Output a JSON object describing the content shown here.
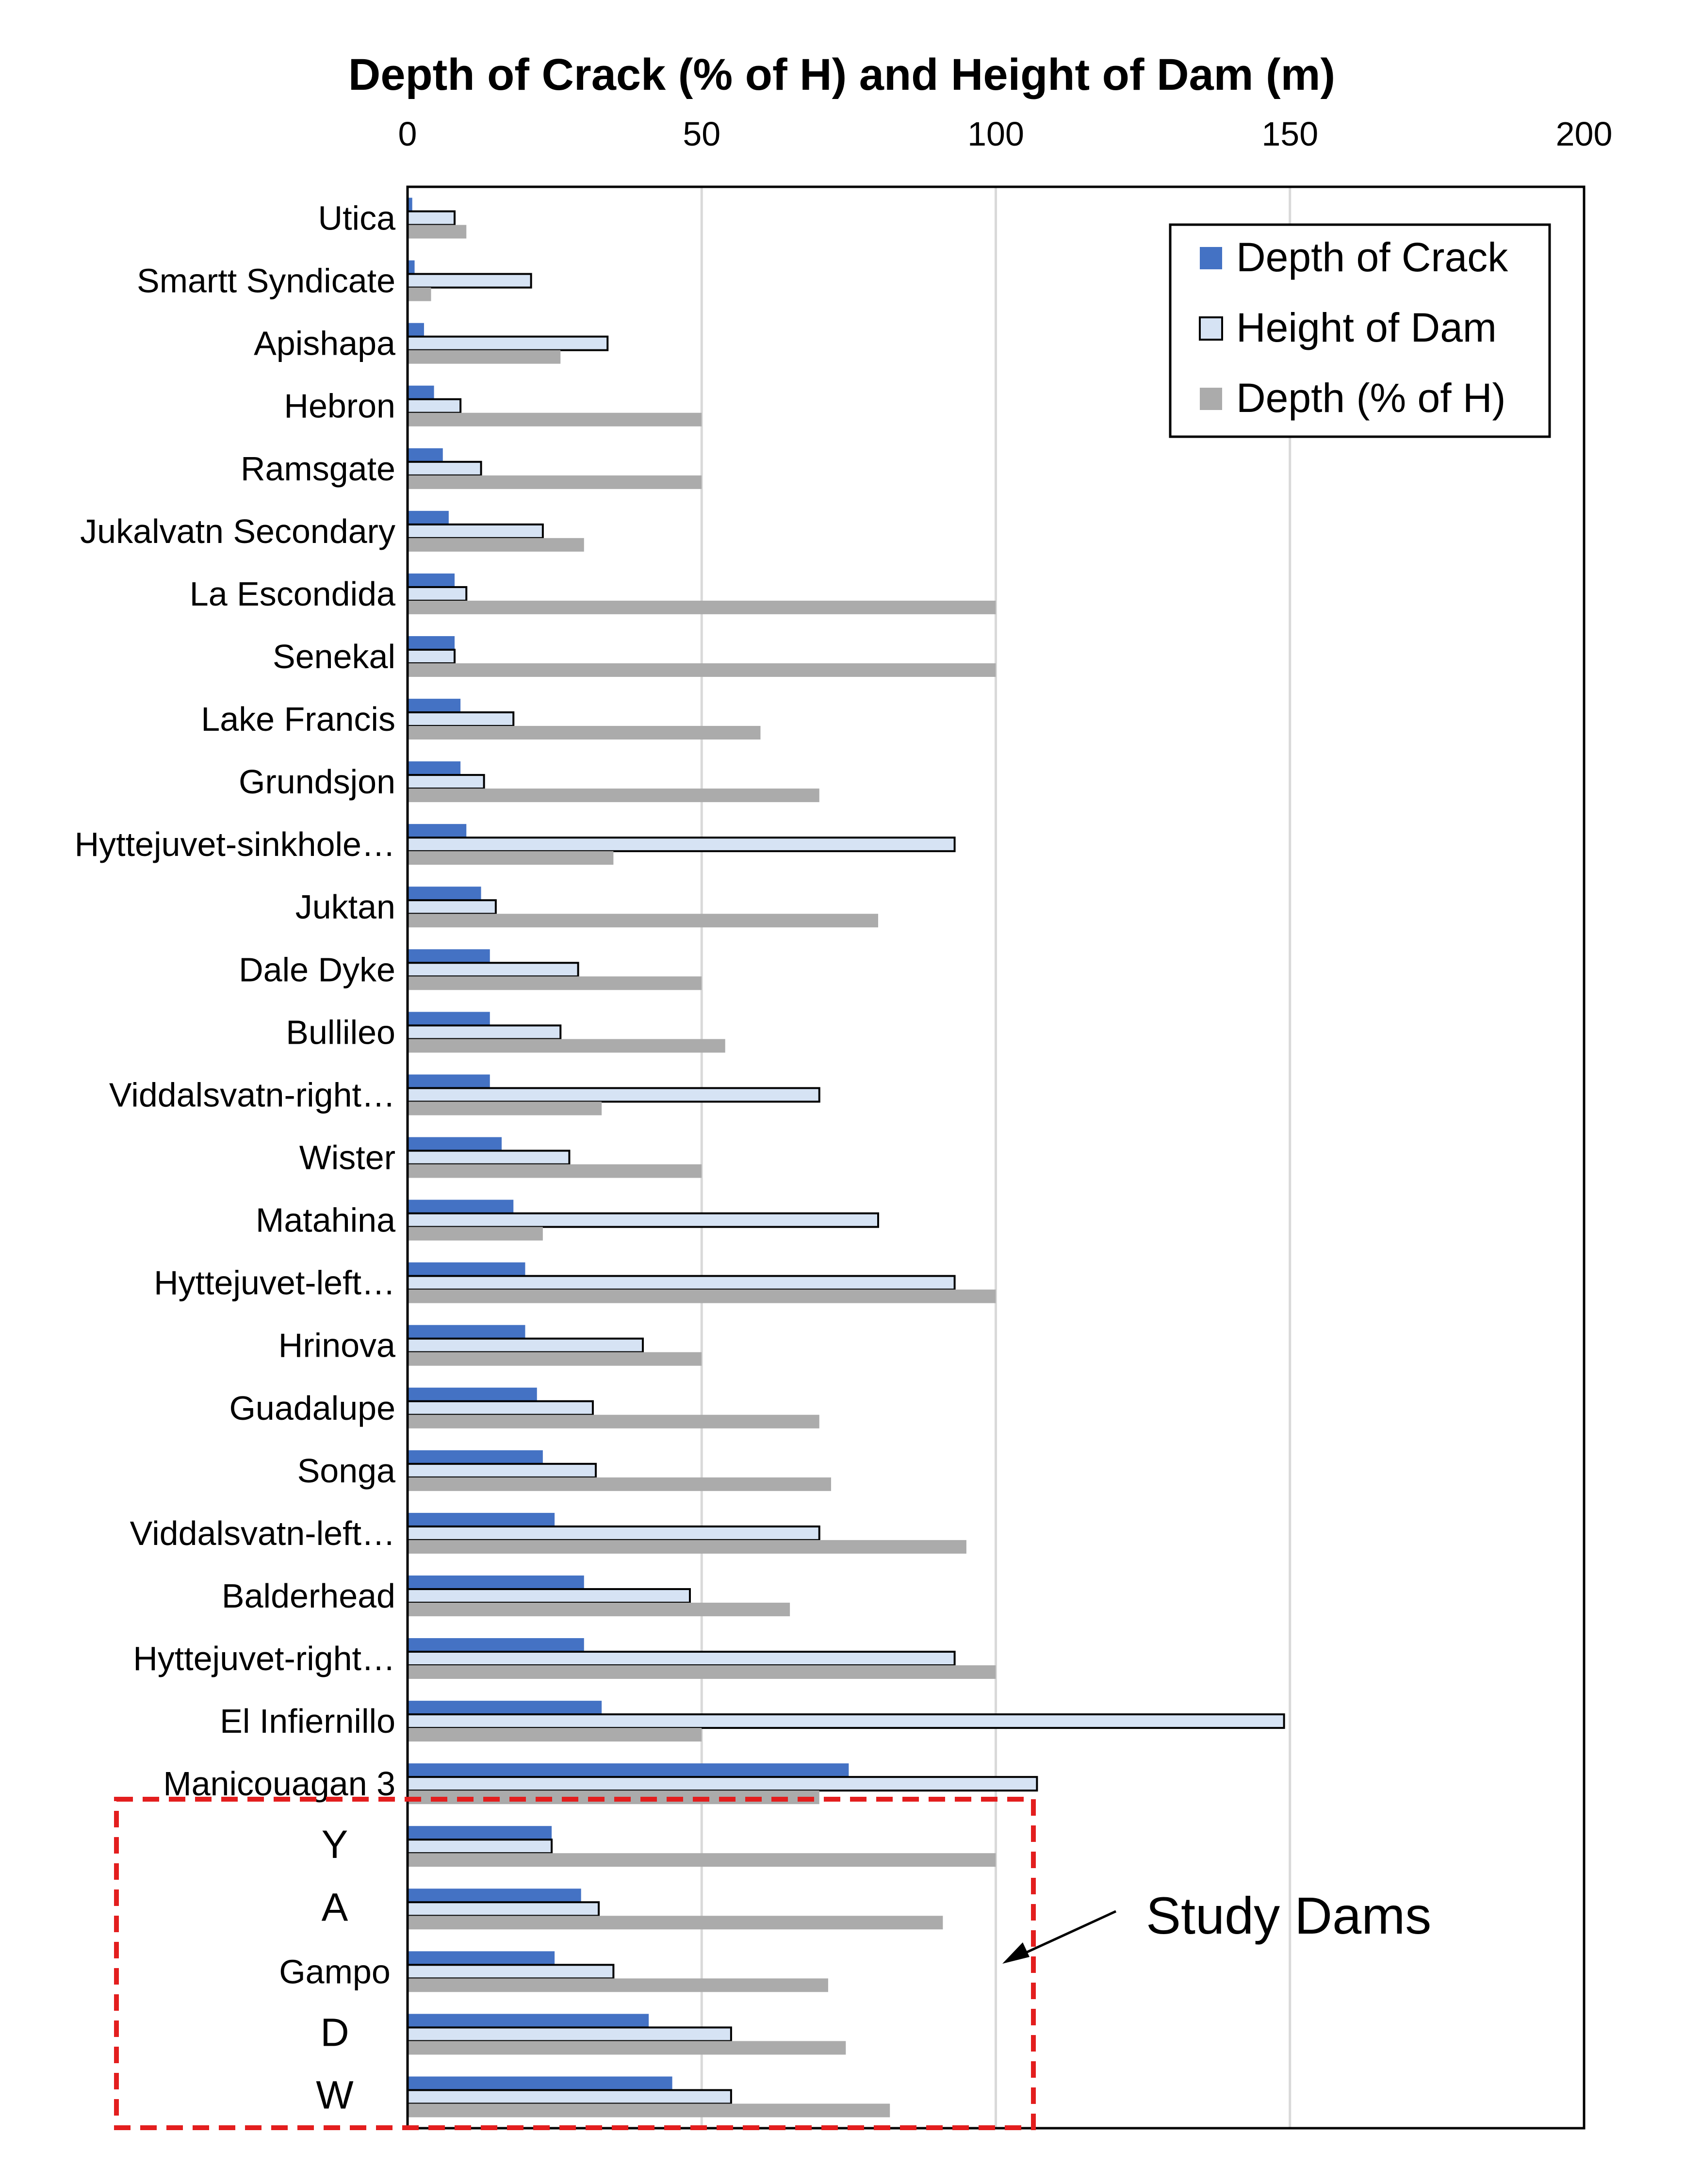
{
  "chart_data": {
    "type": "bar",
    "orientation": "horizontal",
    "title": "Depth of Crack (% of H) and Height of Dam (m)",
    "xlim": [
      0,
      200
    ],
    "x_ticks": [
      0,
      50,
      100,
      150,
      200
    ],
    "grid": true,
    "legend_position": "top-right",
    "categories": [
      "Utica",
      "Smartt Syndicate",
      "Apishapa",
      "Hebron",
      "Ramsgate",
      "Jukalvatn Secondary",
      "La Escondida",
      "Senekal",
      "Lake Francis",
      "Grundsjon",
      "Hyttejuvet-sinkhole…",
      "Juktan",
      "Dale Dyke",
      "Bullileo",
      "Viddalsvatn-right…",
      "Wister",
      "Matahina",
      "Hyttejuvet-left…",
      "Hrinova",
      "Guadalupe",
      "Songa",
      "Viddalsvatn-left…",
      "Balderhead",
      "Hyttejuvet-right…",
      "El Infiernillo",
      "Manicouagan 3",
      "Y",
      "A",
      "Gampo",
      "D",
      "W"
    ],
    "series": [
      {
        "name": "Depth of Crack",
        "color": "#4472C4",
        "values": [
          0.8,
          1.2,
          2.8,
          4.5,
          6,
          7,
          8,
          8,
          9,
          9,
          10,
          12.5,
          14,
          14,
          14,
          16,
          18,
          20,
          20,
          22,
          23,
          25,
          30,
          30,
          33,
          75,
          24.5,
          29.5,
          25,
          41,
          45
        ]
      },
      {
        "name": "Height of Dam",
        "color": "#D6E3F4",
        "values": [
          8,
          21,
          34,
          9,
          12.5,
          23,
          10,
          8,
          18,
          13,
          93,
          15,
          29,
          26,
          70,
          27.5,
          80,
          93,
          40,
          31.5,
          32,
          70,
          48,
          93,
          149,
          107,
          24.5,
          32.5,
          35,
          55,
          55
        ]
      },
      {
        "name": "Depth (% of H)",
        "color": "#ABABAB",
        "values": [
          10,
          4,
          26,
          50,
          50,
          30,
          100,
          100,
          60,
          70,
          35,
          80,
          50,
          54,
          33,
          50,
          23,
          100,
          50,
          70,
          72,
          95,
          65,
          100,
          50,
          70,
          100,
          91,
          71.5,
          74.5,
          82
        ]
      }
    ]
  },
  "annotation": {
    "label": "Study Dams"
  }
}
